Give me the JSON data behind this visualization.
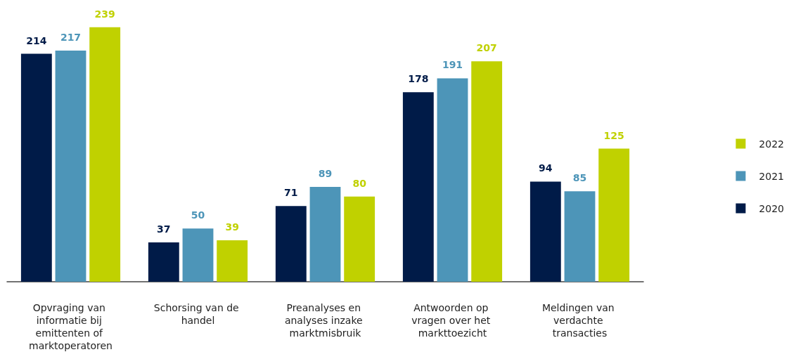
{
  "chart_data": {
    "type": "bar",
    "categories": [
      "Opvraging van informatie bij emittenten of marktoperatoren",
      "Schorsing van de handel",
      "Preanalyses en analyses inzake marktmisbruik",
      "Antwoorden op vragen over het markttoezicht",
      "Meldingen van verdachte transacties"
    ],
    "series": [
      {
        "name": "2020",
        "color": "#001b48",
        "values": [
          214,
          37,
          71,
          178,
          94
        ]
      },
      {
        "name": "2021",
        "color": "#4d95b8",
        "values": [
          217,
          50,
          89,
          191,
          85
        ]
      },
      {
        "name": "2022",
        "color": "#c0d100",
        "values": [
          239,
          39,
          80,
          207,
          125
        ]
      }
    ],
    "data_labels": true,
    "legend": "right",
    "grid": false
  }
}
